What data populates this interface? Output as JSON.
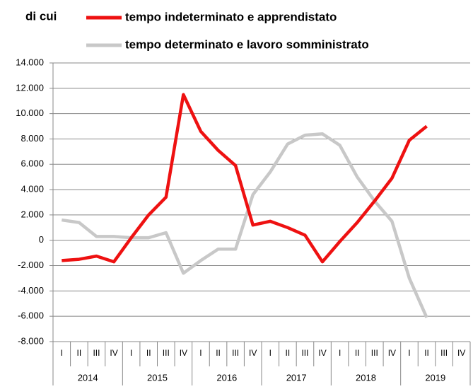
{
  "chart_data": {
    "type": "line",
    "legend_title": "di cui",
    "categories": [
      "I",
      "II",
      "III",
      "IV",
      "I",
      "II",
      "III",
      "IV",
      "I",
      "II",
      "III",
      "IV",
      "I",
      "II",
      "III",
      "IV",
      "I",
      "II",
      "III",
      "IV",
      "I",
      "II",
      "III",
      "IV"
    ],
    "years": [
      "2014",
      "2015",
      "2016",
      "2017",
      "2018",
      "2019"
    ],
    "series": [
      {
        "name": "tempo indeterminato e apprendistato",
        "color": "#ee1111",
        "values": [
          -1600,
          -1500,
          -1250,
          -1700,
          200,
          2000,
          3400,
          11500,
          8600,
          7100,
          5900,
          1200,
          1500,
          1000,
          400,
          -1700,
          -100,
          1400,
          3100,
          4900,
          7900,
          9000,
          null,
          null
        ]
      },
      {
        "name": "tempo determinato e lavoro somministrato",
        "color": "#c8c8c8",
        "values": [
          1600,
          1400,
          300,
          300,
          200,
          200,
          600,
          -2600,
          -1600,
          -700,
          -700,
          3600,
          5400,
          7600,
          8300,
          8400,
          7500,
          5000,
          3100,
          1500,
          -3000,
          -6100,
          null,
          null
        ]
      }
    ],
    "ylim": [
      -8000,
      14000
    ],
    "yticks": [
      {
        "value": -8000,
        "label": "-8.000"
      },
      {
        "value": -6000,
        "label": "-6.000"
      },
      {
        "value": -4000,
        "label": "-4.000"
      },
      {
        "value": -2000,
        "label": "-2.000"
      },
      0,
      {
        "value": 2000,
        "label": "2.000"
      },
      {
        "value": 4000,
        "label": "4.000"
      },
      {
        "value": 6000,
        "label": "6.000"
      },
      {
        "value": 8000,
        "label": "8.000"
      },
      {
        "value": 10000,
        "label": "10.000"
      },
      {
        "value": 12000,
        "label": "12.000"
      },
      {
        "value": 14000,
        "label": "14.000"
      }
    ],
    "grid": true
  }
}
